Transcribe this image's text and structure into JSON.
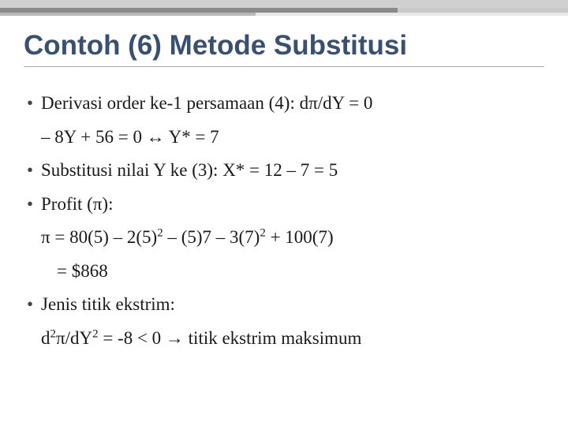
{
  "title": "Contoh (6) Metode Substitusi",
  "lines": {
    "l1": "Derivasi order ke-1 persamaan (4): dπ/dY = 0",
    "l2": "– 8Y + 56 = 0 ↔ Y* = 7",
    "l3": "Substitusi nilai Y ke (3): X* = 12 – 7 = 5",
    "l4": "Profit (π):",
    "l5_prefix": "π = 80(5) – 2(5)",
    "l5_sup1": "2",
    "l5_mid": " – (5)7 – 3(7)",
    "l5_sup2": "2",
    "l5_suffix": " + 100(7)",
    "l6": "= $868",
    "l7": "Jenis titik ekstrim:",
    "l8_prefix": "d",
    "l8_sup1": "2",
    "l8_mid": "π/dY",
    "l8_sup2": "2",
    "l8_suffix": " = -8 < 0 → titik ekstrim maksimum"
  },
  "colors": {
    "title_color": "#3a5070",
    "text_color": "#1a1a1a",
    "border_gray1": "#d0d0d0",
    "border_gray2": "#8a8a8a",
    "border_gray3": "#c9c9c9",
    "background": "#ffffff"
  },
  "typography": {
    "title_fontsize": 35,
    "body_fontsize": 23,
    "title_weight": "bold"
  }
}
